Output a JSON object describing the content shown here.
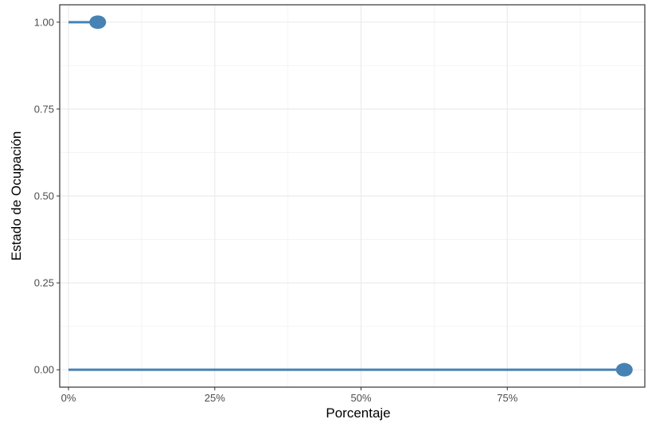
{
  "chart_data": {
    "type": "line",
    "xlabel": "Porcentaje",
    "ylabel": "Estado de Ocupación",
    "xlim": [
      -0.015,
      0.985
    ],
    "ylim": [
      -0.05,
      1.05
    ],
    "x_ticks": [
      {
        "value": 0.0,
        "label": "0%"
      },
      {
        "value": 0.25,
        "label": "25%"
      },
      {
        "value": 0.5,
        "label": "50%"
      },
      {
        "value": 0.75,
        "label": "75%"
      }
    ],
    "y_ticks": [
      {
        "value": 0.0,
        "label": "0.00"
      },
      {
        "value": 0.25,
        "label": "0.25"
      },
      {
        "value": 0.5,
        "label": "0.50"
      },
      {
        "value": 0.75,
        "label": "0.75"
      },
      {
        "value": 1.0,
        "label": "1.00"
      }
    ],
    "grid": true,
    "series": [
      {
        "segments": [
          {
            "x": [
              0.0,
              0.05
            ],
            "y": [
              1.0,
              1.0
            ]
          },
          {
            "x": [
              0.0,
              0.95
            ],
            "y": [
              0.0,
              0.0
            ]
          }
        ],
        "points": [
          {
            "x": 0.05,
            "y": 1.0
          },
          {
            "x": 0.95,
            "y": 0.0
          }
        ]
      }
    ],
    "colors": {
      "series": "#4682b4",
      "grid_major": "#ebebeb",
      "grid_minor": "#f4f4f4",
      "panel_border": "#333333",
      "background": "#ffffff"
    }
  }
}
